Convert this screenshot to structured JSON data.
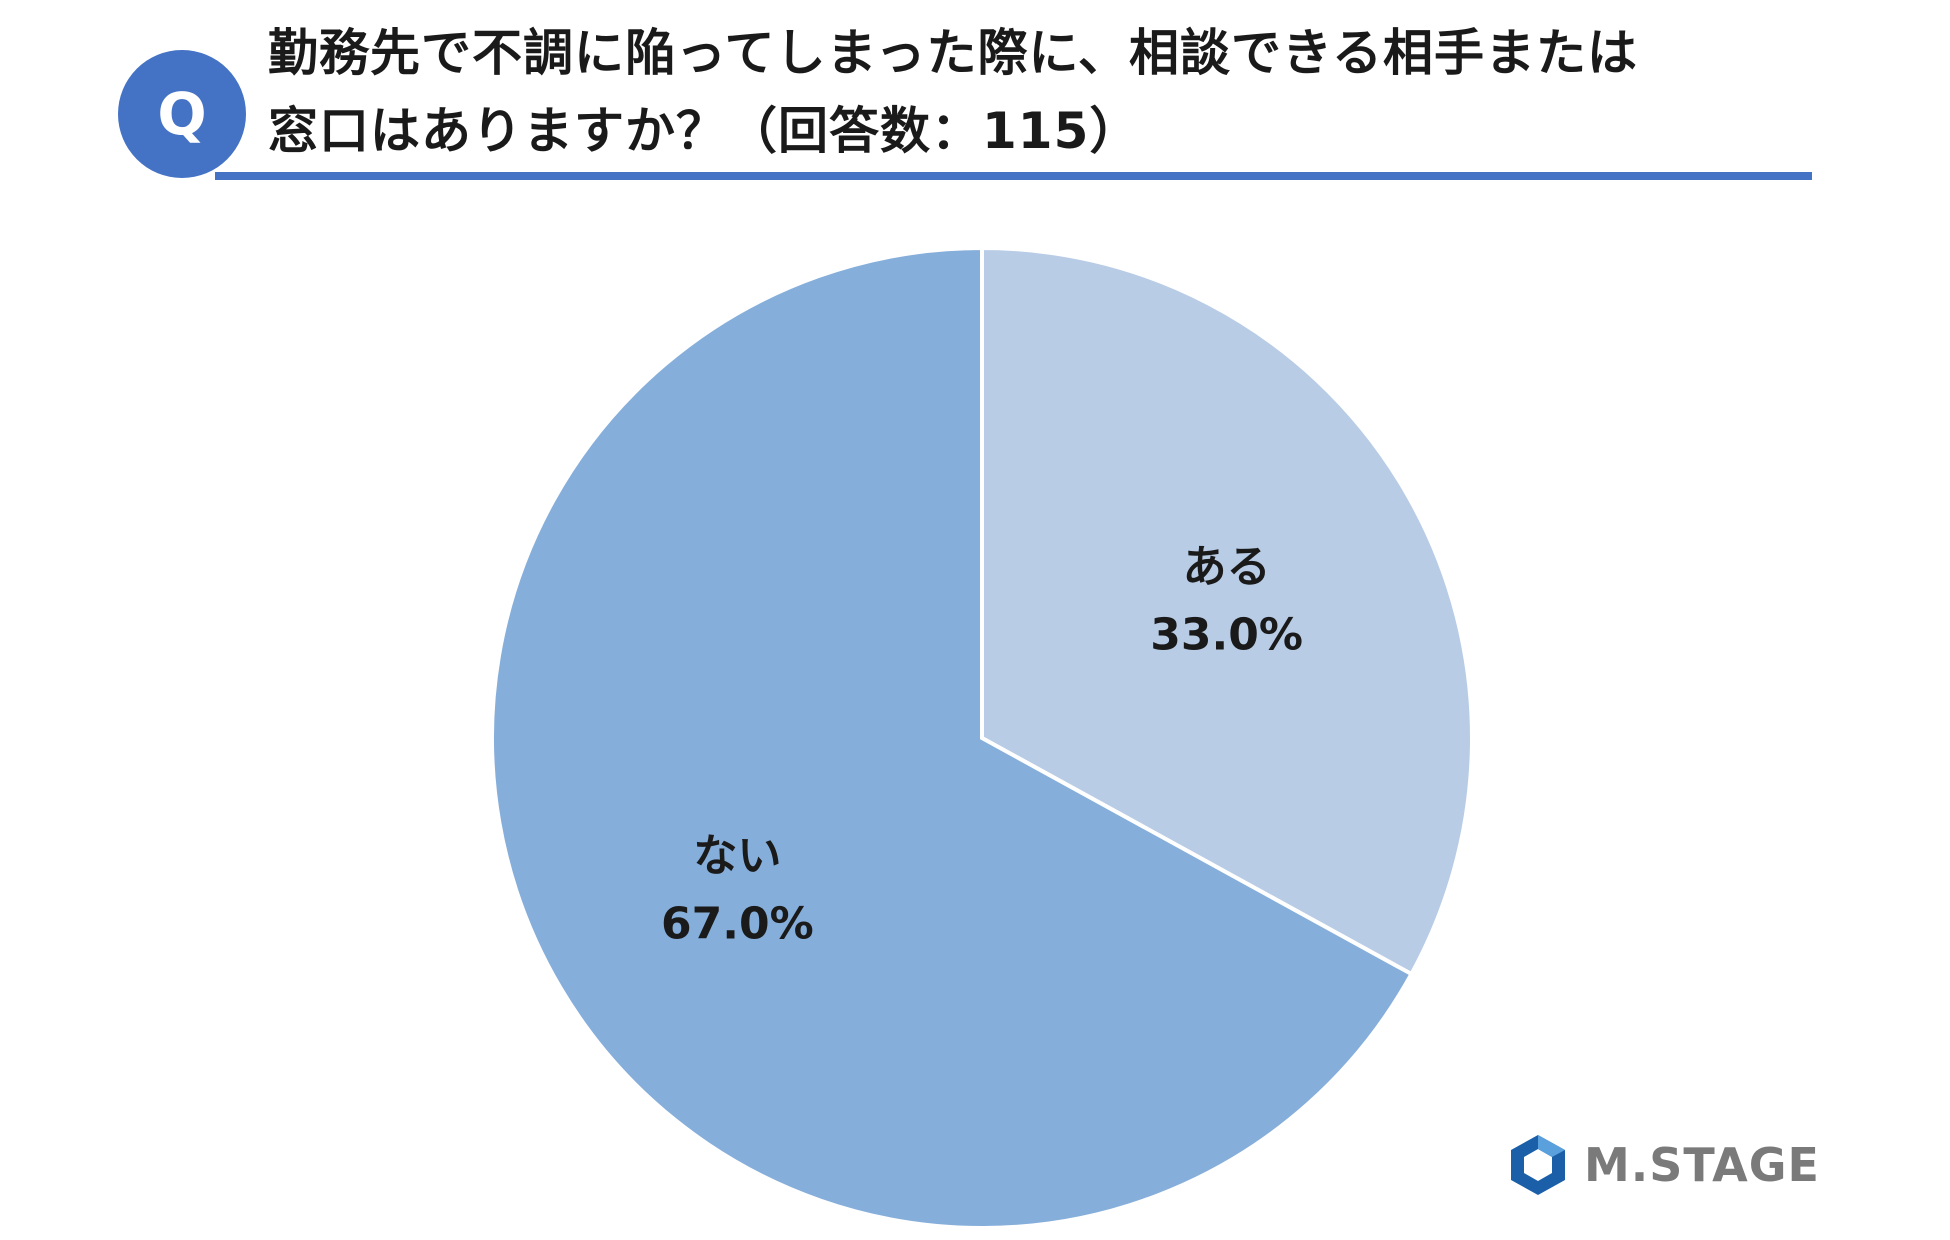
{
  "question": {
    "badge": "Q",
    "title_line1": "勤務先で不調に陥ってしまった際に、相談できる相手または",
    "title_line2": "窓口はありますか？（回答数：115）"
  },
  "chart_data": {
    "type": "pie",
    "categories": [
      "ある",
      "ない"
    ],
    "values": [
      33.0,
      67.0
    ],
    "value_labels": [
      "33.0%",
      "67.0%"
    ],
    "colors": [
      "#b8cce6",
      "#85aedb"
    ],
    "start_angle": "12 o'clock, clockwise",
    "legend": "none"
  },
  "colors": {
    "accent": "#4472c4",
    "logo_mark": "#1a5fa8"
  },
  "logo": {
    "text": "M.STAGE",
    "icon": "hexagon-logo-icon"
  }
}
